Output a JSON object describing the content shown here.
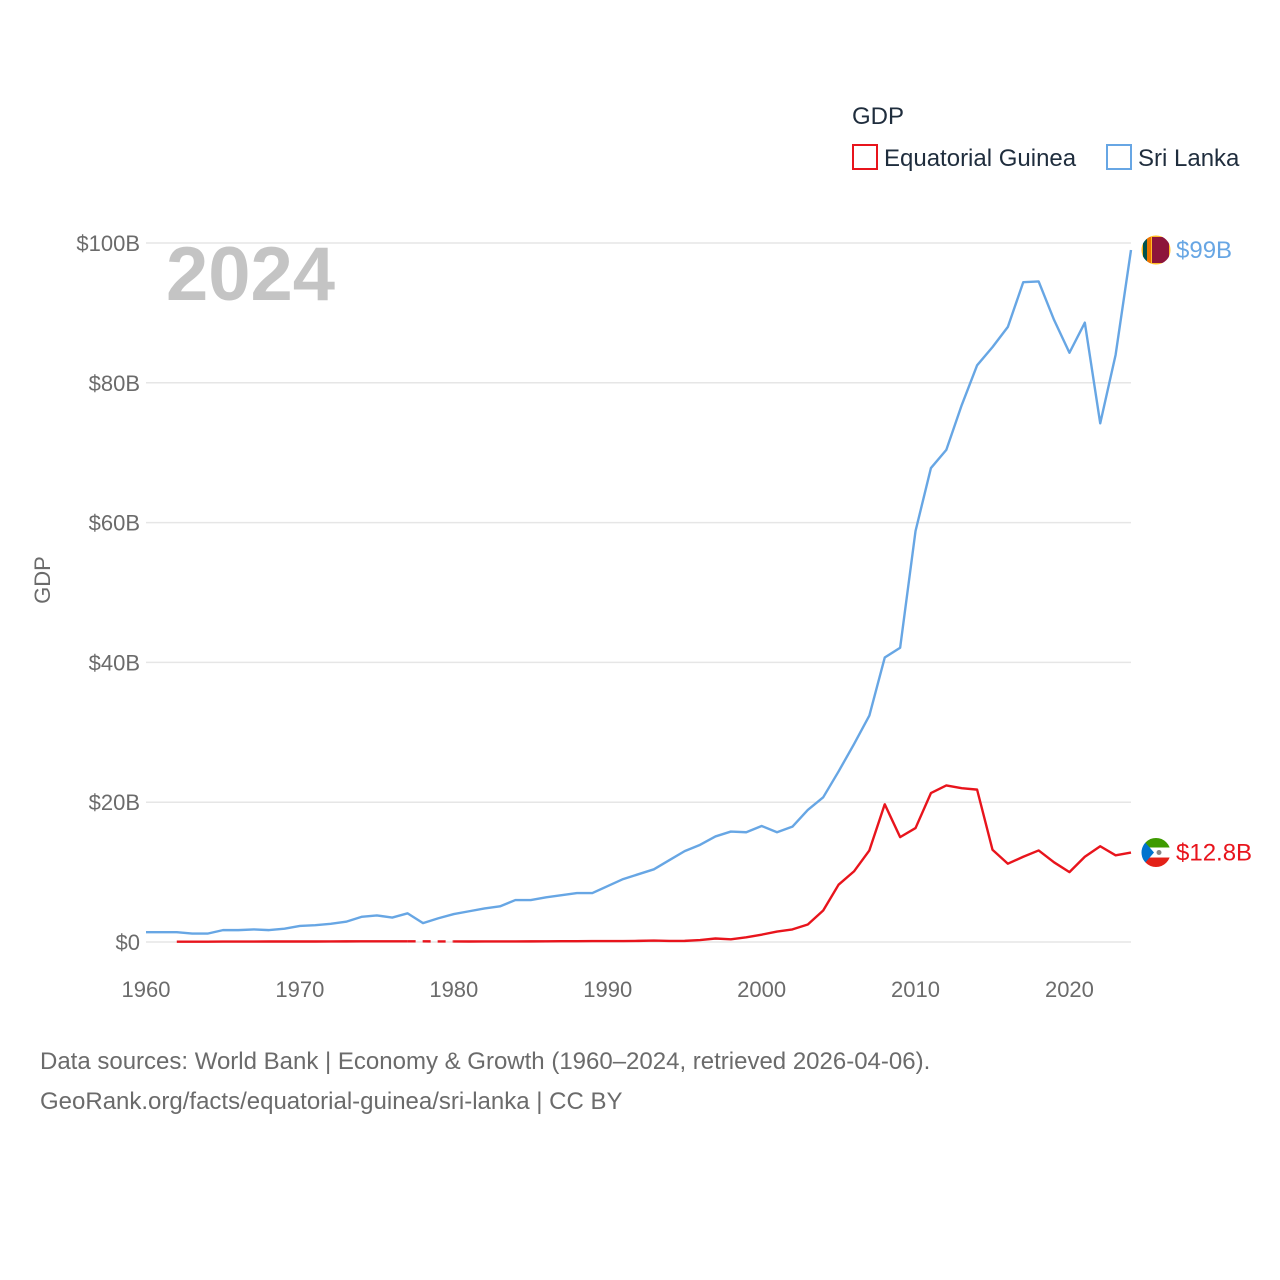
{
  "chart_data": {
    "type": "line",
    "title": "",
    "year_watermark": "2024",
    "ylabel": "GDP",
    "xlabel": "",
    "xlim": [
      1960,
      2024
    ],
    "ylim": [
      0,
      100
    ],
    "y_unit": "billion USD",
    "x_ticks": [
      "1960",
      "1970",
      "1980",
      "1990",
      "2000",
      "2010",
      "2020"
    ],
    "x_tick_values": [
      1960,
      1970,
      1980,
      1990,
      2000,
      2010,
      2020
    ],
    "y_ticks": [
      "$0",
      "$20B",
      "$40B",
      "$60B",
      "$80B",
      "$100B"
    ],
    "y_tick_values": [
      0,
      20,
      40,
      60,
      80,
      100
    ],
    "grid": true,
    "legend": {
      "title": "GDP",
      "position": "top-right",
      "entries": [
        "Equatorial Guinea",
        "Sri Lanka"
      ]
    },
    "series": [
      {
        "name": "Equatorial Guinea",
        "color": "#e8141c",
        "end_label": "$12.8B",
        "flag": "equatorial-guinea-flag",
        "x": [
          1962,
          1963,
          1964,
          1965,
          1966,
          1967,
          1968,
          1969,
          1970,
          1971,
          1972,
          1973,
          1974,
          1975,
          1976,
          1977,
          1978,
          1979,
          1980,
          1981,
          1982,
          1983,
          1984,
          1985,
          1986,
          1987,
          1988,
          1989,
          1990,
          1991,
          1992,
          1993,
          1994,
          1995,
          1996,
          1997,
          1998,
          1999,
          2000,
          2001,
          2002,
          2003,
          2004,
          2005,
          2006,
          2007,
          2008,
          2009,
          2010,
          2011,
          2012,
          2013,
          2014,
          2015,
          2016,
          2017,
          2018,
          2019,
          2020,
          2021,
          2022,
          2023,
          2024
        ],
        "values": [
          0.04,
          0.05,
          0.05,
          0.06,
          0.06,
          0.06,
          0.07,
          0.07,
          0.07,
          0.07,
          0.08,
          0.09,
          0.1,
          0.1,
          0.1,
          0.1,
          0.1,
          0.08,
          0.08,
          0.07,
          0.08,
          0.08,
          0.08,
          0.09,
          0.1,
          0.11,
          0.12,
          0.13,
          0.13,
          0.14,
          0.16,
          0.2,
          0.15,
          0.16,
          0.28,
          0.5,
          0.39,
          0.67,
          1.05,
          1.5,
          1.8,
          2.5,
          4.5,
          8.2,
          10.1,
          13.1,
          19.7,
          15.0,
          16.3,
          21.3,
          22.4,
          22.0,
          21.8,
          13.2,
          11.2,
          12.2,
          13.1,
          11.4,
          10.0,
          12.2,
          13.7,
          12.4,
          12.8
        ],
        "gap_segments": [
          [
            1977,
            1980
          ]
        ]
      },
      {
        "name": "Sri Lanka",
        "color": "#67a6e4",
        "end_label": "$99B",
        "flag": "sri-lanka-flag",
        "x": [
          1960,
          1961,
          1962,
          1963,
          1964,
          1965,
          1966,
          1967,
          1968,
          1969,
          1970,
          1971,
          1972,
          1973,
          1974,
          1975,
          1976,
          1977,
          1978,
          1979,
          1980,
          1981,
          1982,
          1983,
          1984,
          1985,
          1986,
          1987,
          1988,
          1989,
          1990,
          1991,
          1992,
          1993,
          1994,
          1995,
          1996,
          1997,
          1998,
          1999,
          2000,
          2001,
          2002,
          2003,
          2004,
          2005,
          2006,
          2007,
          2008,
          2009,
          2010,
          2011,
          2012,
          2013,
          2014,
          2015,
          2016,
          2017,
          2018,
          2019,
          2020,
          2021,
          2022,
          2023,
          2024
        ],
        "values": [
          1.4,
          1.4,
          1.4,
          1.2,
          1.2,
          1.7,
          1.7,
          1.8,
          1.7,
          1.9,
          2.3,
          2.4,
          2.6,
          2.9,
          3.6,
          3.8,
          3.5,
          4.1,
          2.7,
          3.4,
          4.0,
          4.4,
          4.8,
          5.1,
          6.0,
          6.0,
          6.4,
          6.7,
          7.0,
          7.0,
          8.0,
          9.0,
          9.7,
          10.4,
          11.7,
          13.0,
          13.9,
          15.1,
          15.8,
          15.7,
          16.6,
          15.7,
          16.5,
          18.9,
          20.7,
          24.4,
          28.3,
          32.4,
          40.7,
          42.1,
          58.8,
          67.8,
          70.4,
          76.8,
          82.5,
          85.1,
          88.0,
          94.4,
          94.5,
          89.0,
          84.3,
          88.6,
          74.2,
          84.0,
          99.0
        ]
      }
    ]
  },
  "source": {
    "line1": "Data sources: World Bank | Economy & Growth (1960–2024, retrieved 2026-04-06).",
    "line2": "GeoRank.org/facts/equatorial-guinea/sri-lanka | CC BY"
  }
}
